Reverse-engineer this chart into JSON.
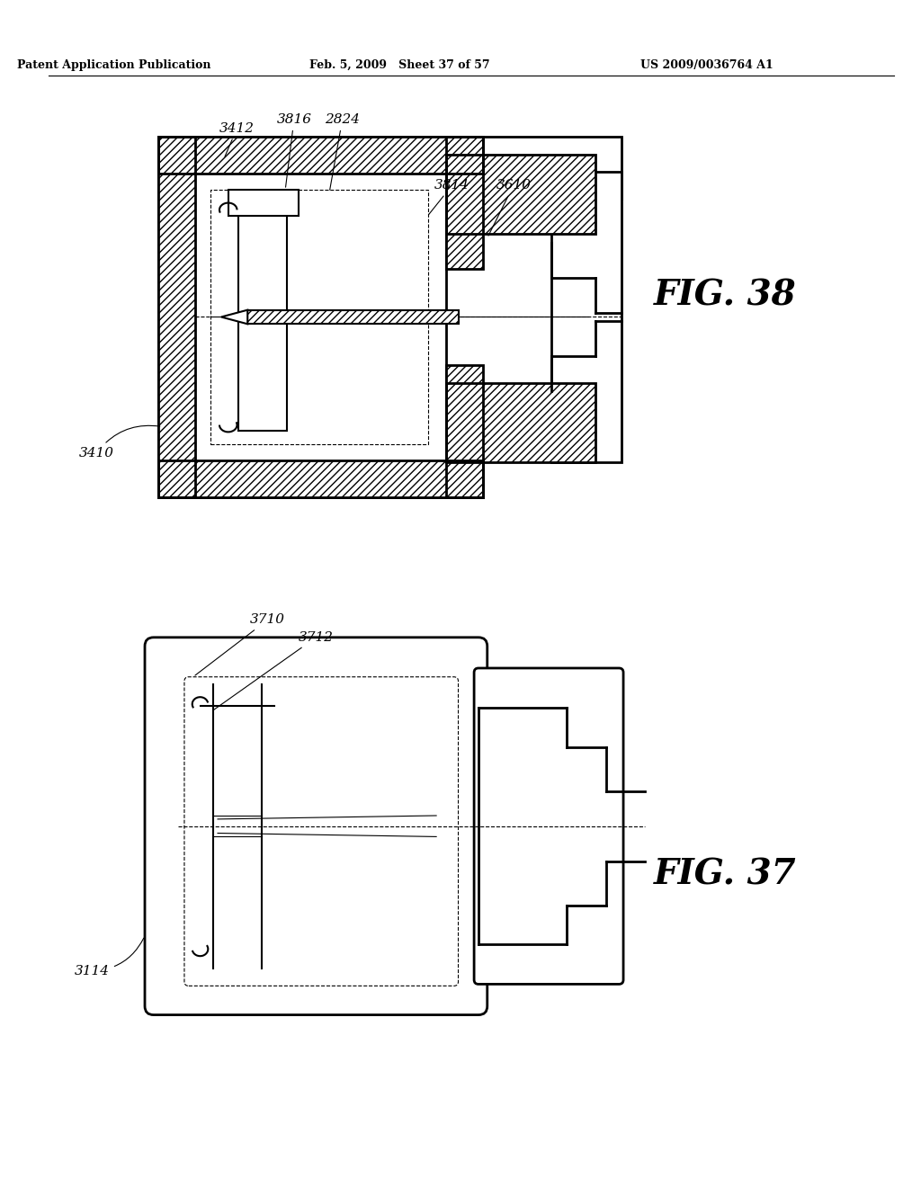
{
  "header_left": "Patent Application Publication",
  "header_mid": "Feb. 5, 2009   Sheet 37 of 57",
  "header_right": "US 2009/0036764 A1",
  "fig38_label": "FIG. 38",
  "fig37_label": "FIG. 37",
  "background": "#ffffff",
  "line_color": "#000000",
  "hatch_color": "#000000",
  "labels_fig38": [
    "3412",
    "3816",
    "2824",
    "3814",
    "3610",
    "3410"
  ],
  "labels_fig37": [
    "3710",
    "3712",
    "3114"
  ]
}
